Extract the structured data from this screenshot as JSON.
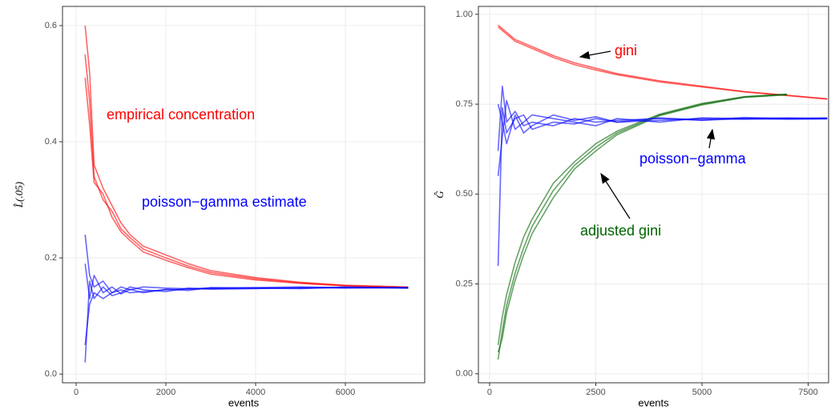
{
  "chart_data": [
    {
      "type": "line",
      "xlabel": "events",
      "ylabel": "L̂(.05)",
      "xlim": [
        -304,
        7768
      ],
      "ylim": [
        -0.015,
        0.633
      ],
      "xticks": [
        0,
        2000,
        4000,
        6000
      ],
      "yticks": [
        {
          "value": 0,
          "label": "0.0"
        },
        0.2,
        0.4,
        0.6
      ],
      "grid": true,
      "x": [
        200,
        300,
        400,
        600,
        800,
        1000,
        1200,
        1500,
        2000,
        2500,
        3000,
        4000,
        5000,
        6000,
        7400
      ],
      "series": [
        {
          "color": "#ff0000",
          "values": [
            0.6,
            0.52,
            0.36,
            0.32,
            0.29,
            0.26,
            0.24,
            0.22,
            0.205,
            0.19,
            0.178,
            0.166,
            0.158,
            0.153,
            0.15
          ]
        },
        {
          "color": "#ff0000",
          "values": [
            0.55,
            0.47,
            0.34,
            0.3,
            0.28,
            0.25,
            0.235,
            0.215,
            0.2,
            0.186,
            0.175,
            0.164,
            0.157,
            0.152,
            0.149
          ]
        },
        {
          "color": "#ff0000",
          "values": [
            0.51,
            0.43,
            0.33,
            0.31,
            0.27,
            0.245,
            0.23,
            0.21,
            0.196,
            0.183,
            0.172,
            0.162,
            0.156,
            0.152,
            0.149
          ]
        },
        {
          "color": "#0000ff",
          "values": [
            0.24,
            0.17,
            0.15,
            0.16,
            0.14,
            0.15,
            0.145,
            0.15,
            0.148,
            0.147,
            0.148,
            0.149,
            0.15,
            0.149,
            0.149
          ]
        },
        {
          "color": "#0000ff",
          "values": [
            0.05,
            0.12,
            0.14,
            0.13,
            0.14,
            0.145,
            0.14,
            0.142,
            0.145,
            0.146,
            0.147,
            0.148,
            0.148,
            0.149,
            0.148
          ]
        },
        {
          "color": "#0000ff",
          "values": [
            0.02,
            0.16,
            0.13,
            0.15,
            0.135,
            0.14,
            0.15,
            0.145,
            0.142,
            0.148,
            0.146,
            0.147,
            0.149,
            0.148,
            0.149
          ]
        },
        {
          "color": "#0000ff",
          "values": [
            0.19,
            0.13,
            0.17,
            0.14,
            0.15,
            0.138,
            0.146,
            0.14,
            0.146,
            0.144,
            0.149,
            0.148,
            0.147,
            0.15,
            0.148
          ]
        }
      ],
      "annotations": [
        {
          "text": "empirical concentration",
          "color": "#ff0000"
        },
        {
          "text": "poisson−gamma estimate",
          "color": "#0000ff"
        }
      ]
    },
    {
      "type": "line",
      "xlabel": "events",
      "ylabel": "Ĝ",
      "xlim": [
        -264,
        7981
      ],
      "ylim": [
        -0.025,
        1.022
      ],
      "xticks": [
        0,
        2500,
        5000,
        7500
      ],
      "yticks": [
        {
          "value": 0,
          "label": "0.00"
        },
        0.25,
        {
          "value": 0.5,
          "label": "0.50"
        },
        0.75,
        {
          "value": 1,
          "label": "1.00"
        }
      ],
      "grid": true,
      "x": [
        200,
        300,
        400,
        600,
        800,
        1000,
        1500,
        2000,
        2500,
        3000,
        4000,
        5000,
        6000,
        7000,
        7950
      ],
      "series": [
        {
          "color": "#ff0000",
          "values": [
            0.97,
            0.96,
            0.95,
            0.93,
            0.92,
            0.91,
            0.885,
            0.865,
            0.85,
            0.835,
            0.815,
            0.8,
            0.785,
            0.775,
            0.765
          ]
        },
        {
          "color": "#ff0000",
          "values": [
            0.965,
            0.955,
            0.945,
            0.925,
            0.915,
            0.905,
            0.88,
            0.86,
            0.845,
            0.832,
            0.812,
            0.798,
            0.784,
            0.774,
            0.764
          ]
        },
        {
          "color": "#006400",
          "values": [
            0.04,
            0.12,
            0.19,
            0.28,
            0.35,
            0.41,
            0.51,
            0.58,
            0.63,
            0.67,
            0.72,
            0.75,
            0.77,
            0.777,
            null
          ]
        },
        {
          "color": "#006400",
          "values": [
            0.08,
            0.16,
            0.22,
            0.31,
            0.38,
            0.43,
            0.53,
            0.59,
            0.64,
            0.675,
            0.722,
            0.752,
            0.771,
            0.778,
            null
          ]
        },
        {
          "color": "#006400",
          "values": [
            0.06,
            0.1,
            0.17,
            0.26,
            0.33,
            0.39,
            0.49,
            0.57,
            0.62,
            0.665,
            0.718,
            0.748,
            0.769,
            0.776,
            null
          ]
        },
        {
          "color": "#0000ff",
          "values": [
            0.62,
            0.8,
            0.7,
            0.73,
            0.69,
            0.7,
            0.69,
            0.71,
            0.7,
            0.705,
            0.71,
            0.705,
            0.71,
            0.712,
            0.71
          ]
        },
        {
          "color": "#0000ff",
          "values": [
            0.3,
            0.74,
            0.67,
            0.71,
            0.72,
            0.68,
            0.7,
            0.695,
            0.71,
            0.7,
            0.705,
            0.71,
            0.708,
            0.71,
            0.712
          ]
        },
        {
          "color": "#0000ff",
          "values": [
            0.55,
            0.66,
            0.76,
            0.68,
            0.7,
            0.72,
            0.71,
            0.7,
            0.69,
            0.71,
            0.7,
            0.712,
            0.71,
            0.708,
            0.709
          ]
        },
        {
          "color": "#0000ff",
          "values": [
            0.75,
            0.7,
            0.64,
            0.72,
            0.67,
            0.69,
            0.72,
            0.705,
            0.715,
            0.7,
            0.712,
            0.706,
            0.713,
            0.71,
            0.71
          ]
        }
      ],
      "annotations": [
        {
          "text": "gini",
          "color": "#ff0000"
        },
        {
          "text": "poisson−gamma",
          "color": "#0000ff"
        },
        {
          "text": "adjusted gini",
          "color": "#006400"
        }
      ]
    }
  ]
}
